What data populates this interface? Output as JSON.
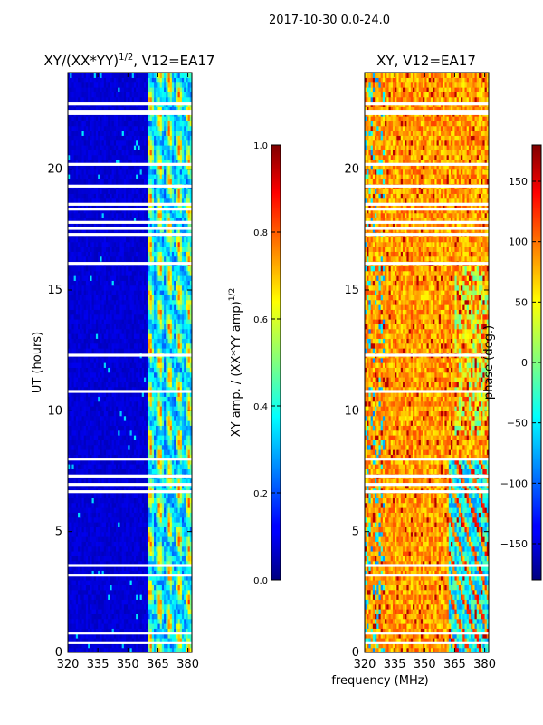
{
  "figure": {
    "suptitle": "2017-10-30 0.0-24.0"
  },
  "chart_data": [
    {
      "type": "heatmap",
      "title": "XY/(XX*YY)",
      "title_superscript": "1/2",
      "title_suffix": ", V12=EA17",
      "xlabel": "",
      "ylabel": "UT (hours)",
      "xlim": [
        320,
        382
      ],
      "ylim": [
        0,
        24
      ],
      "xticks": [
        320,
        335,
        350,
        365,
        380
      ],
      "yticks": [
        0,
        5,
        10,
        15,
        20
      ],
      "colorbar": {
        "label": "XY amp. / (XX*YY amp)",
        "label_superscript": "1/2",
        "range": [
          0.0,
          1.0
        ],
        "ticks": [
          0.0,
          0.2,
          0.4,
          0.6,
          0.8,
          1.0
        ],
        "tick_labels": [
          "0.0",
          "0.2",
          "0.4",
          "0.6",
          "0.8",
          "1.0"
        ],
        "colormap": "jet"
      },
      "active_band_mhz": [
        360,
        382
      ],
      "gap_hours": [
        0.4,
        0.8,
        3.2,
        3.6,
        6.65,
        6.95,
        7.3,
        8.0,
        10.8,
        12.3,
        16.1,
        17.3,
        17.55,
        17.8,
        18.35,
        18.55,
        19.3,
        20.2,
        22.3,
        22.4,
        22.7
      ]
    },
    {
      "type": "heatmap",
      "title": "XY, V12=EA17",
      "xlabel": "frequency (MHz)",
      "ylabel": "",
      "xlim": [
        320,
        382
      ],
      "ylim": [
        0,
        24
      ],
      "xticks": [
        320,
        335,
        350,
        365,
        380
      ],
      "yticks": [
        0,
        5,
        10,
        15,
        20
      ],
      "colorbar": {
        "label": "phase (deg.)",
        "range": [
          -180,
          180
        ],
        "ticks": [
          -150,
          -100,
          -50,
          0,
          50,
          100,
          150
        ],
        "tick_labels": [
          "−150",
          "−100",
          "−50",
          "0",
          "50",
          "100",
          "150"
        ],
        "colormap": "jet"
      },
      "gap_hours": [
        0.4,
        0.8,
        3.2,
        3.6,
        6.65,
        6.95,
        7.3,
        8.0,
        10.8,
        12.3,
        16.1,
        17.3,
        17.55,
        17.8,
        18.35,
        18.55,
        19.3,
        20.2,
        22.3,
        22.4,
        22.7
      ]
    }
  ]
}
